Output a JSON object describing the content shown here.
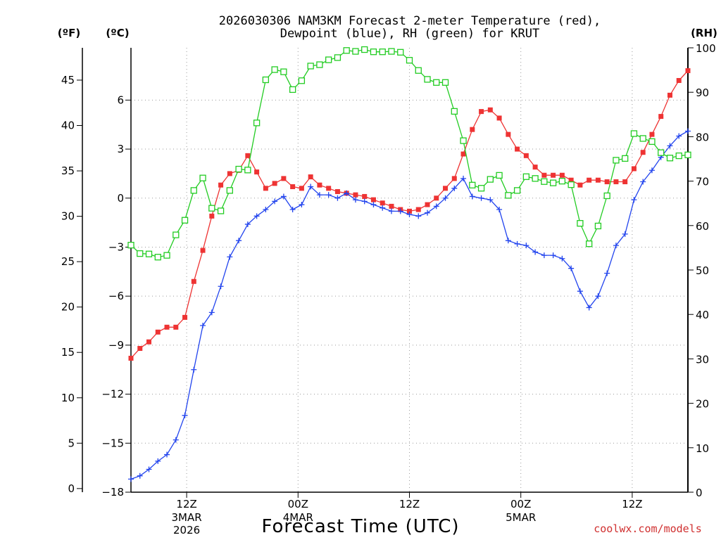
{
  "chart_data": {
    "type": "line",
    "title_line1": "2026030306 NAM3KM Forecast 2-meter Temperature (red),",
    "title_line2": "Dewpoint (blue), RH (green) for KRUT",
    "xlabel": "Forecast Time (UTC)",
    "credit": "coolwx.com/models",
    "unit_f": "(ºF)",
    "unit_c": "(ºC)",
    "unit_rh": "(RH)",
    "x_hours_start": 6,
    "x_hours_end": 66,
    "xlim_hours": [
      6,
      66
    ],
    "ylim_c": [
      -18,
      9.2
    ],
    "ylim_rh": [
      0,
      100
    ],
    "x_ticks": [
      {
        "hour": 12,
        "label": "12Z",
        "date1": "3MAR",
        "date2": "2026"
      },
      {
        "hour": 24,
        "label": "00Z",
        "date1": "4MAR",
        "date2": ""
      },
      {
        "hour": 36,
        "label": "12Z",
        "date1": "",
        "date2": ""
      },
      {
        "hour": 48,
        "label": "00Z",
        "date1": "5MAR",
        "date2": ""
      },
      {
        "hour": 60,
        "label": "12Z",
        "date1": "",
        "date2": ""
      }
    ],
    "c_ticks": [
      {
        "v": -18,
        "label": "−18"
      },
      {
        "v": -15,
        "label": "−15"
      },
      {
        "v": -12,
        "label": "−12"
      },
      {
        "v": -9,
        "label": "−9"
      },
      {
        "v": -6,
        "label": "−6"
      },
      {
        "v": -3,
        "label": "−3"
      },
      {
        "v": 0,
        "label": "0"
      },
      {
        "v": 3,
        "label": "3"
      },
      {
        "v": 6,
        "label": "6"
      }
    ],
    "f_ticks": [
      {
        "v": 0,
        "label": "0"
      },
      {
        "v": 5,
        "label": "5"
      },
      {
        "v": 10,
        "label": "10"
      },
      {
        "v": 15,
        "label": "15"
      },
      {
        "v": 20,
        "label": "20"
      },
      {
        "v": 25,
        "label": "25"
      },
      {
        "v": 30,
        "label": "30"
      },
      {
        "v": 35,
        "label": "35"
      },
      {
        "v": 40,
        "label": "40"
      },
      {
        "v": 45,
        "label": "45"
      }
    ],
    "rh_ticks": [
      {
        "v": 0,
        "label": "0"
      },
      {
        "v": 10,
        "label": "10"
      },
      {
        "v": 20,
        "label": "20"
      },
      {
        "v": 30,
        "label": "30"
      },
      {
        "v": 40,
        "label": "40"
      },
      {
        "v": 50,
        "label": "50"
      },
      {
        "v": 60,
        "label": "60"
      },
      {
        "v": 70,
        "label": "70"
      },
      {
        "v": 80,
        "label": "80"
      },
      {
        "v": 90,
        "label": "90"
      },
      {
        "v": 100,
        "label": "100"
      }
    ],
    "series": [
      {
        "name": "Temperature",
        "unit": "C",
        "color": "#ee3333",
        "marker": "filled-square",
        "values": [
          -9.8,
          -9.2,
          -8.8,
          -8.2,
          -7.9,
          -7.9,
          -7.3,
          -5.1,
          -3.2,
          -1.1,
          0.8,
          1.5,
          1.7,
          2.6,
          1.6,
          0.6,
          0.9,
          1.2,
          0.7,
          0.6,
          1.3,
          0.8,
          0.6,
          0.4,
          0.3,
          0.2,
          0.1,
          -0.1,
          -0.3,
          -0.5,
          -0.7,
          -0.8,
          -0.7,
          -0.4,
          0.0,
          0.6,
          1.2,
          2.7,
          4.2,
          5.3,
          5.4,
          4.9,
          3.9,
          3.0,
          2.6,
          1.9,
          1.4,
          1.4,
          1.4,
          1.1,
          0.8,
          1.1,
          1.1,
          1.0,
          1.0,
          1.0,
          1.8,
          2.8,
          3.9,
          5.0,
          6.3,
          7.2,
          7.8
        ]
      },
      {
        "name": "Dewpoint",
        "unit": "C",
        "color": "#2244ee",
        "marker": "plus",
        "values": [
          -17.2,
          -17.0,
          -16.6,
          -16.1,
          -15.7,
          -14.8,
          -13.3,
          -10.5,
          -7.8,
          -7.0,
          -5.4,
          -3.6,
          -2.6,
          -1.6,
          -1.1,
          -0.7,
          -0.2,
          0.1,
          -0.7,
          -0.4,
          0.7,
          0.2,
          0.2,
          0.0,
          0.3,
          -0.1,
          -0.2,
          -0.4,
          -0.6,
          -0.8,
          -0.8,
          -1.0,
          -1.1,
          -0.9,
          -0.5,
          0.0,
          0.6,
          1.2,
          0.1,
          0.0,
          -0.1,
          -0.7,
          -2.6,
          -2.8,
          -2.9,
          -3.3,
          -3.5,
          -3.5,
          -3.7,
          -4.3,
          -5.7,
          -6.7,
          -6.0,
          -4.6,
          -2.9,
          -2.2,
          -0.1,
          1.0,
          1.7,
          2.5,
          3.2,
          3.8,
          4.1
        ]
      },
      {
        "name": "RH",
        "unit": "%",
        "color": "#22cc22",
        "marker": "open-square",
        "values": [
          55.6,
          53.7,
          53.6,
          52.9,
          53.3,
          57.9,
          61.2,
          67.9,
          70.7,
          63.9,
          63.3,
          67.9,
          72.7,
          72.5,
          83.1,
          92.8,
          95.1,
          94.6,
          90.6,
          92.6,
          95.9,
          96.2,
          97.3,
          97.8,
          99.4,
          99.2,
          99.6,
          99.1,
          99.1,
          99.2,
          99.0,
          97.2,
          94.9,
          92.9,
          92.2,
          92.2,
          85.7,
          79.1,
          69.1,
          68.4,
          70.4,
          71.3,
          66.8,
          67.9,
          71.0,
          70.6,
          69.9,
          69.6,
          70.0,
          69.2,
          60.5,
          55.9,
          59.9,
          66.7,
          74.7,
          75.1,
          80.7,
          79.6,
          78.9,
          76.4,
          75.2,
          75.7,
          75.9
        ]
      }
    ]
  }
}
